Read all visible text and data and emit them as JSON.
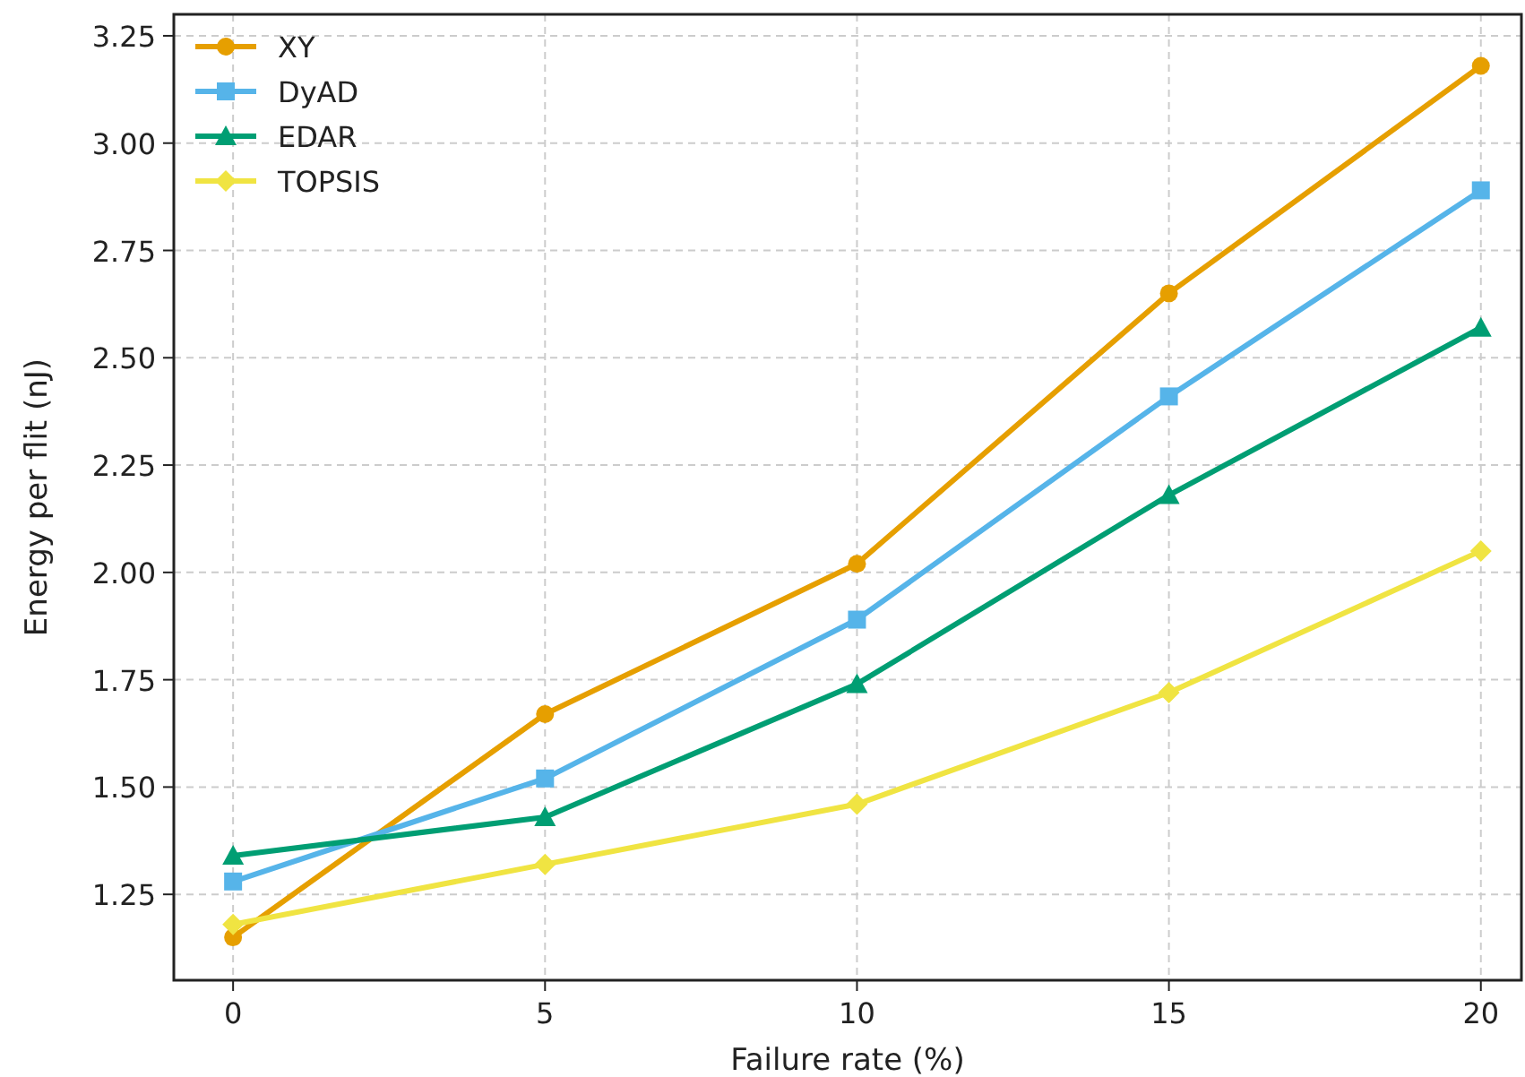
{
  "chart_data": {
    "type": "line",
    "xlabel": "Failure rate (%)",
    "ylabel": "Energy per flit (nJ)",
    "x": [
      0,
      5,
      10,
      15,
      20
    ],
    "series": [
      {
        "name": "XY",
        "color": "#e69f00",
        "marker": "circle",
        "values": [
          1.15,
          1.67,
          2.02,
          2.65,
          3.18
        ]
      },
      {
        "name": "DyAD",
        "color": "#56b4e9",
        "marker": "square",
        "values": [
          1.28,
          1.52,
          1.89,
          2.41,
          2.89
        ]
      },
      {
        "name": "EDAR",
        "color": "#009e73",
        "marker": "triangle",
        "values": [
          1.34,
          1.43,
          1.74,
          2.18,
          2.57
        ]
      },
      {
        "name": "TOPSIS",
        "color": "#f0e442",
        "marker": "diamond",
        "values": [
          1.18,
          1.32,
          1.46,
          1.72,
          2.05
        ]
      }
    ],
    "xlim": [
      -0.95,
      20.65
    ],
    "xticks": [
      0,
      5,
      10,
      15,
      20
    ],
    "ylim": [
      1.05,
      3.3
    ],
    "yticks": [
      {
        "value": 1.25,
        "label": "1.25"
      },
      {
        "value": 1.5,
        "label": "1.50"
      },
      {
        "value": 1.75,
        "label": "1.75"
      },
      {
        "value": 2,
        "label": "2.00"
      },
      {
        "value": 2.25,
        "label": "2.25"
      },
      {
        "value": 2.5,
        "label": "2.50"
      },
      {
        "value": 2.75,
        "label": "2.75"
      },
      {
        "value": 3,
        "label": "3.00"
      },
      {
        "value": 3.25,
        "label": "3.25"
      }
    ],
    "grid": true,
    "legend": "top left",
    "line_style": "solid"
  }
}
